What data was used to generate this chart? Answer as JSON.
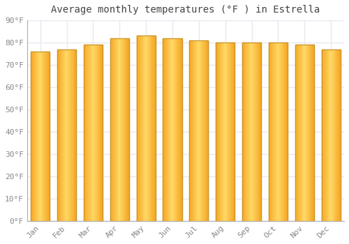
{
  "title": "Average monthly temperatures (°F ) in Estrella",
  "months": [
    "Jan",
    "Feb",
    "Mar",
    "Apr",
    "May",
    "Jun",
    "Jul",
    "Aug",
    "Sep",
    "Oct",
    "Nov",
    "Dec"
  ],
  "values": [
    76,
    77,
    79,
    82,
    83,
    82,
    81,
    80,
    80,
    80,
    79,
    77
  ],
  "bar_color_center": "#FFD966",
  "bar_color_edge": "#F5A623",
  "bar_border_color": "#C8922A",
  "ylim": [
    0,
    90
  ],
  "ytick_step": 10,
  "background_color": "#ffffff",
  "grid_color": "#e8e8f0",
  "title_fontsize": 10,
  "tick_fontsize": 8,
  "tick_color": "#888888"
}
